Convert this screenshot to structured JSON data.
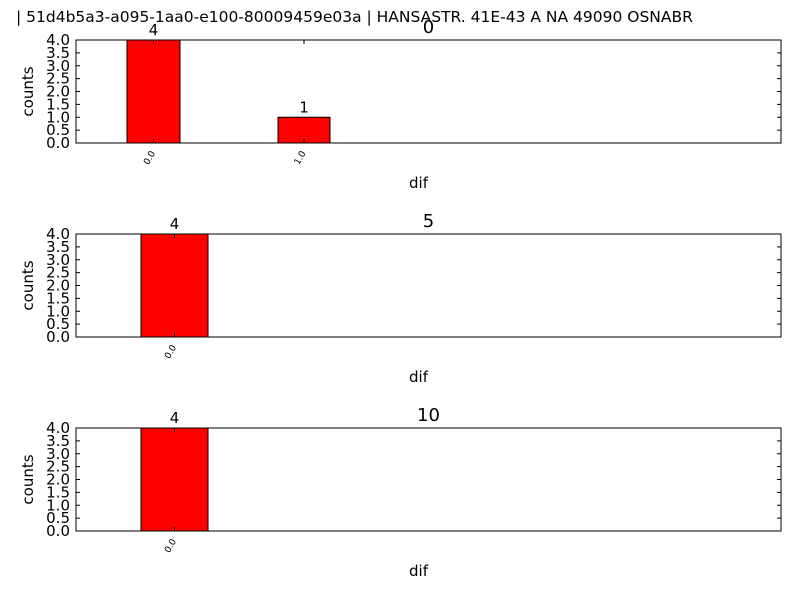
{
  "figure": {
    "suptitle": "| 51d4b5a3-a095-1aa0-e100-80009459e03a |        HANSASTR. 41E-43 A NA 49090 OSNABR"
  },
  "colors": {
    "bar": "#ff0000",
    "edge": "#000000",
    "background": "#ffffff"
  },
  "chart_data": [
    {
      "type": "bar",
      "title": "0",
      "xlabel": "dif",
      "ylabel": "counts",
      "categories": [
        "0.0",
        "1.0"
      ],
      "values": [
        4,
        1
      ],
      "data_labels": [
        "4",
        "1"
      ],
      "ylim": [
        0,
        4
      ],
      "yticks": [
        "0.0",
        "0.5",
        "1.0",
        "1.5",
        "2.0",
        "2.5",
        "3.0",
        "3.5",
        "4.0"
      ],
      "grid": false
    },
    {
      "type": "bar",
      "title": "5",
      "xlabel": "dif",
      "ylabel": "counts",
      "categories": [
        "0.0"
      ],
      "values": [
        4
      ],
      "data_labels": [
        "4"
      ],
      "ylim": [
        0,
        4
      ],
      "yticks": [
        "0.0",
        "0.5",
        "1.0",
        "1.5",
        "2.0",
        "2.5",
        "3.0",
        "3.5",
        "4.0"
      ],
      "grid": false
    },
    {
      "type": "bar",
      "title": "10",
      "xlabel": "dif",
      "ylabel": "counts",
      "categories": [
        "0.0"
      ],
      "values": [
        4
      ],
      "data_labels": [
        "4"
      ],
      "ylim": [
        0,
        4
      ],
      "yticks": [
        "0.0",
        "0.5",
        "1.0",
        "1.5",
        "2.0",
        "2.5",
        "3.0",
        "3.5",
        "4.0"
      ],
      "grid": false
    }
  ]
}
